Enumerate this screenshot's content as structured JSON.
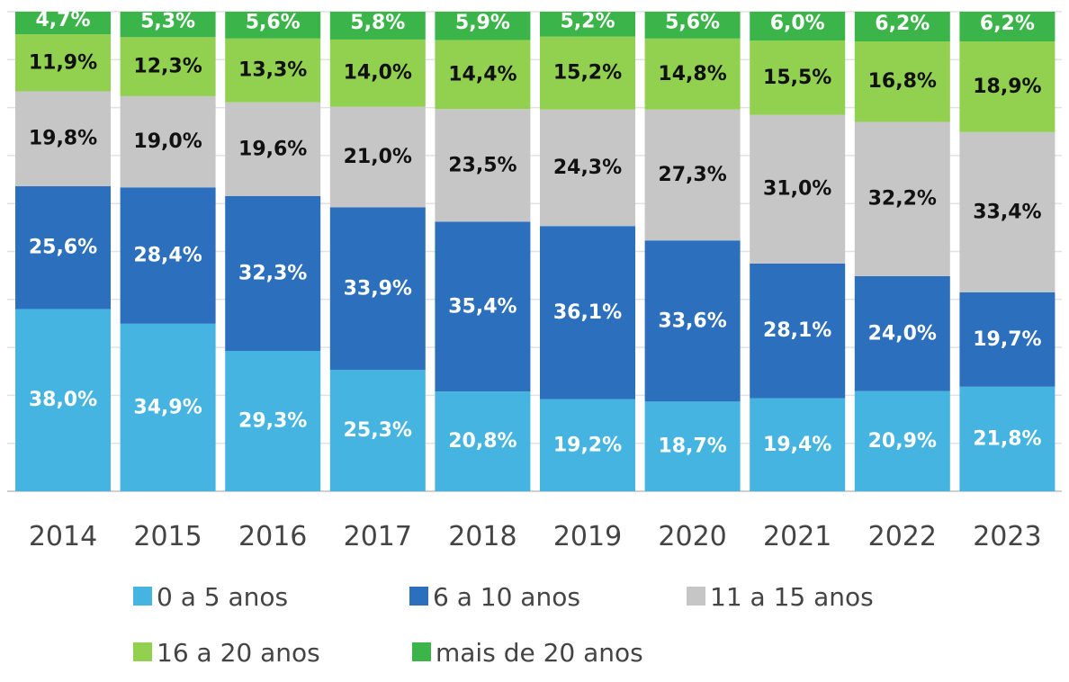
{
  "chart_data": {
    "type": "bar",
    "stacked": true,
    "normalized": true,
    "categories": [
      "2014",
      "2015",
      "2016",
      "2017",
      "2018",
      "2019",
      "2020",
      "2021",
      "2022",
      "2023"
    ],
    "ylim": [
      0,
      100
    ],
    "grid": true,
    "legend_position": "bottom",
    "series": [
      {
        "name": "0 a 5 anos",
        "color": "#45b4e0",
        "label_color": "#ffffff",
        "values": [
          38.0,
          34.9,
          29.3,
          25.3,
          20.8,
          19.2,
          18.7,
          19.4,
          20.9,
          21.8
        ],
        "labels": [
          "38,0%",
          "34,9%",
          "29,3%",
          "25,3%",
          "20,8%",
          "19,2%",
          "18,7%",
          "19,4%",
          "20,9%",
          "21,8%"
        ]
      },
      {
        "name": "6 a 10 anos",
        "color": "#2b6fbd",
        "label_color": "#ffffff",
        "values": [
          25.6,
          28.4,
          32.3,
          33.9,
          35.4,
          36.1,
          33.6,
          28.1,
          24.0,
          19.7
        ],
        "labels": [
          "25,6%",
          "28,4%",
          "32,3%",
          "33,9%",
          "35,4%",
          "36,1%",
          "33,6%",
          "28,1%",
          "24,0%",
          "19,7%"
        ]
      },
      {
        "name": "11 a 15 anos",
        "color": "#c6c6c6",
        "label_color": "#111111",
        "values": [
          19.8,
          19.0,
          19.6,
          21.0,
          23.5,
          24.3,
          27.3,
          31.0,
          32.2,
          33.4
        ],
        "labels": [
          "19,8%",
          "19,0%",
          "19,6%",
          "21,0%",
          "23,5%",
          "24,3%",
          "27,3%",
          "31,0%",
          "32,2%",
          "33,4%"
        ]
      },
      {
        "name": "16 a 20 anos",
        "color": "#92d050",
        "label_color": "#111111",
        "values": [
          11.9,
          12.3,
          13.3,
          14.0,
          14.4,
          15.2,
          14.8,
          15.5,
          16.8,
          18.9
        ],
        "labels": [
          "11,9%",
          "12,3%",
          "13,3%",
          "14,0%",
          "14,4%",
          "15,2%",
          "14,8%",
          "15,5%",
          "16,8%",
          "18,9%"
        ]
      },
      {
        "name": "mais de 20 anos",
        "color": "#3bb54a",
        "label_color": "#ffffff",
        "values": [
          4.7,
          5.3,
          5.6,
          5.8,
          5.9,
          5.2,
          5.6,
          6.0,
          6.2,
          6.2
        ],
        "labels": [
          "4,7%",
          "5,3%",
          "5,6%",
          "5,8%",
          "5,9%",
          "5,2%",
          "5,6%",
          "6,0%",
          "6,2%",
          "6,2%"
        ]
      }
    ]
  }
}
